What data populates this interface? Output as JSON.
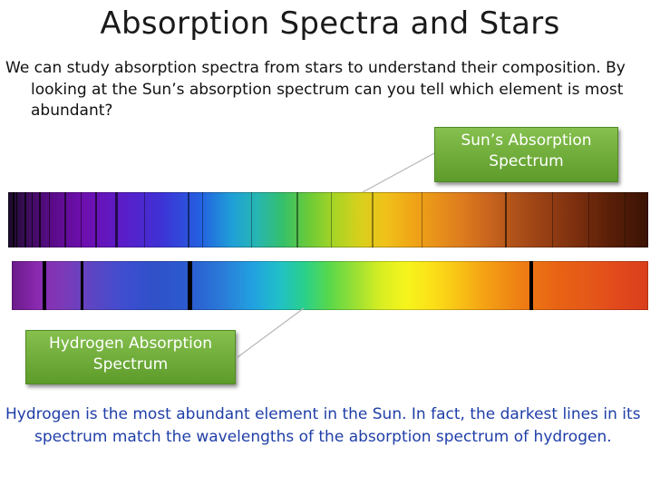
{
  "slide": {
    "title": "Absorption Spectra and Stars",
    "intro": "We can study absorption spectra from stars to understand their composition. By looking at the Sun’s absorption spectrum can you tell which element is most abundant?",
    "callout_sun_line1": "Sun’s Absorption",
    "callout_sun_line2": "Spectrum",
    "callout_hydrogen_line1": "Hydrogen Absorption",
    "callout_hydrogen_line2": "Spectrum",
    "conclusion": "Hydrogen is the most abundant element in the Sun. In fact, the darkest lines in its spectrum match the wavelengths of the absorption spectrum of hydrogen."
  },
  "colors": {
    "title_text": "#1a1a1a",
    "body_text": "#111111",
    "conclusion_text": "#1f3ea8",
    "callout_green": "#6aaa35"
  }
}
